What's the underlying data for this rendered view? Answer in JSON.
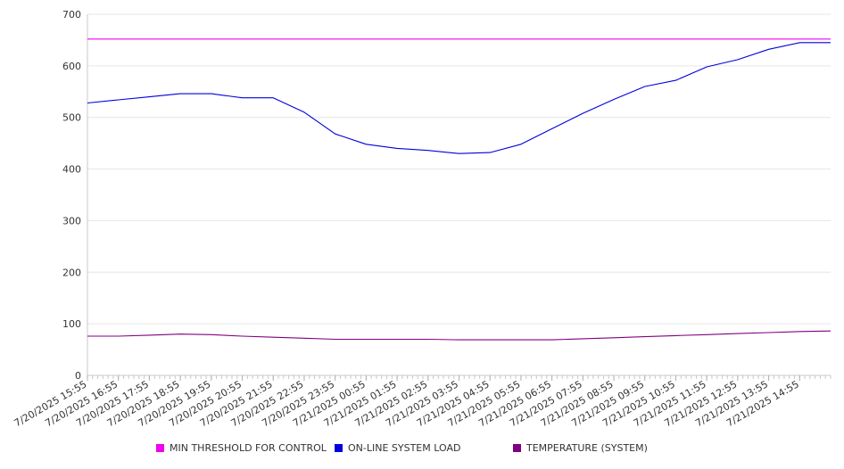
{
  "chart_data": {
    "type": "line",
    "ylim": [
      0,
      700
    ],
    "yticks": [
      0,
      100,
      200,
      300,
      400,
      500,
      600,
      700
    ],
    "x_tick_labels": [
      "7/20/2025 15:55",
      "7/20/2025 16:55",
      "7/20/2025 17:55",
      "7/20/2025 18:55",
      "7/20/2025 19:55",
      "7/20/2025 20:55",
      "7/20/2025 21:55",
      "7/20/2025 22:55",
      "7/20/2025 23:55",
      "7/21/2025 00:55",
      "7/21/2025 01:55",
      "7/21/2025 02:55",
      "7/21/2025 03:55",
      "7/21/2025 04:55",
      "7/21/2025 05:55",
      "7/21/2025 06:55",
      "7/21/2025 07:55",
      "7/21/2025 08:55",
      "7/21/2025 09:55",
      "7/21/2025 10:55",
      "7/21/2025 11:55",
      "7/21/2025 12:55",
      "7/21/2025 13:55",
      "7/21/2025 14:55"
    ],
    "grid": true,
    "legend_position": "bottom",
    "series": [
      {
        "name": "MIN THRESHOLD FOR CONTROL",
        "color": "#ee00ee",
        "values": [
          652,
          652,
          652,
          652,
          652,
          652,
          652,
          652,
          652,
          652,
          652,
          652,
          652,
          652,
          652,
          652,
          652,
          652,
          652,
          652,
          652,
          652,
          652,
          652,
          652
        ]
      },
      {
        "name": "ON-LINE SYSTEM LOAD",
        "color": "#0000dd",
        "values": [
          528,
          534,
          540,
          546,
          546,
          538,
          538,
          510,
          468,
          448,
          440,
          436,
          430,
          432,
          448,
          478,
          508,
          535,
          560,
          572,
          598,
          612,
          632,
          645,
          645
        ]
      },
      {
        "name": "TEMPERATURE (SYSTEM)",
        "color": "#800080",
        "values": [
          76,
          76,
          78,
          80,
          79,
          76,
          74,
          72,
          70,
          70,
          70,
          70,
          69,
          69,
          69,
          69,
          71,
          73,
          75,
          77,
          79,
          81,
          83,
          85,
          86
        ]
      }
    ]
  }
}
